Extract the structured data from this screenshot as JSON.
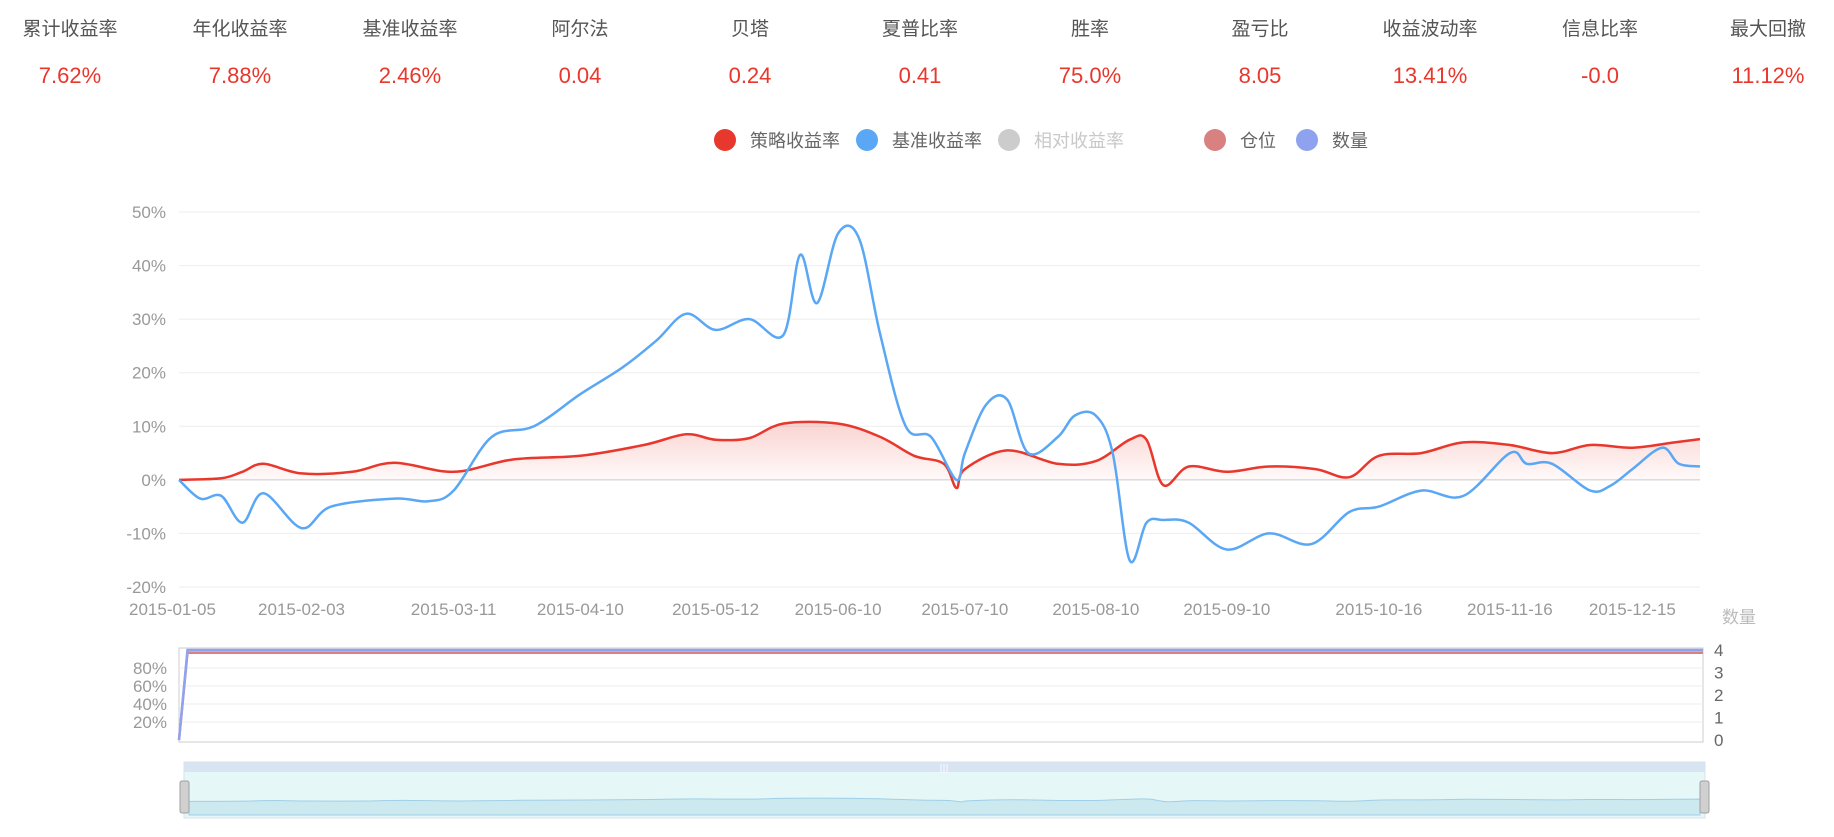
{
  "metrics": [
    {
      "label": "累计收益率",
      "value": "7.62%"
    },
    {
      "label": "年化收益率",
      "value": "7.88%"
    },
    {
      "label": "基准收益率",
      "value": "2.46%"
    },
    {
      "label": "阿尔法",
      "value": "0.04"
    },
    {
      "label": "贝塔",
      "value": "0.24"
    },
    {
      "label": "夏普比率",
      "value": "0.41"
    },
    {
      "label": "胜率",
      "value": "75.0%"
    },
    {
      "label": "盈亏比",
      "value": "8.05"
    },
    {
      "label": "收益波动率",
      "value": "13.41%"
    },
    {
      "label": "信息比率",
      "value": "-0.0"
    },
    {
      "label": "最大回撤",
      "value": "11.12%"
    }
  ],
  "colors": {
    "strategy": "#e8372c",
    "benchmark": "#5aa7f5",
    "relative": "#cccccc",
    "position": "#d98080",
    "quantity": "#8ea2f0",
    "metric_value": "#e8372c"
  },
  "legend": [
    {
      "name": "策略收益率",
      "color": "#e8372c",
      "active": true
    },
    {
      "name": "基准收益率",
      "color": "#5aa7f5",
      "active": true
    },
    {
      "name": "相对收益率",
      "color": "#cccccc",
      "active": false
    },
    {
      "name": "仓位",
      "color": "#d98080",
      "active": true
    },
    {
      "name": "数量",
      "color": "#8ea2f0",
      "active": true
    }
  ],
  "chart_data": [
    {
      "type": "line",
      "title": "",
      "xlabel": "",
      "ylabel": "",
      "ylim": [
        -20,
        50
      ],
      "y_ticks": [
        "50%",
        "40%",
        "30%",
        "20%",
        "10%",
        "0%",
        "-10%",
        "-20%"
      ],
      "x_ticks": [
        "2015-01-05",
        "2015-02-03",
        "2015-03-11",
        "2015-04-10",
        "2015-05-12",
        "2015-06-10",
        "2015-07-10",
        "2015-08-10",
        "2015-09-10",
        "2015-10-16",
        "2015-11-16",
        "2015-12-15"
      ],
      "grid": true,
      "legend_position": "top",
      "series": [
        {
          "name": "策略收益率",
          "x": [
            "2015-01-05",
            "2015-01-15",
            "2015-01-20",
            "2015-01-25",
            "2015-02-03",
            "2015-02-15",
            "2015-02-25",
            "2015-03-11",
            "2015-03-25",
            "2015-04-10",
            "2015-04-25",
            "2015-05-05",
            "2015-05-12",
            "2015-05-20",
            "2015-05-28",
            "2015-06-10",
            "2015-06-20",
            "2015-06-28",
            "2015-07-05",
            "2015-07-08",
            "2015-07-10",
            "2015-07-20",
            "2015-08-01",
            "2015-08-10",
            "2015-08-18",
            "2015-08-22",
            "2015-08-26",
            "2015-09-01",
            "2015-09-10",
            "2015-09-20",
            "2015-10-01",
            "2015-10-09",
            "2015-10-16",
            "2015-10-26",
            "2015-11-05",
            "2015-11-16",
            "2015-11-26",
            "2015-12-05",
            "2015-12-15",
            "2015-12-25",
            "2015-12-31"
          ],
          "values": [
            0,
            0.3,
            1.5,
            3,
            1.2,
            1.5,
            3.2,
            1.5,
            3.8,
            4.5,
            6.5,
            8.5,
            7.5,
            7.8,
            10.5,
            10.5,
            8,
            4.5,
            3,
            -1.5,
            2,
            5.5,
            3,
            3.5,
            7.5,
            7.5,
            -1,
            2.5,
            1.5,
            2.5,
            2,
            0.5,
            4.5,
            5,
            7,
            6.5,
            5,
            6.5,
            6,
            7,
            7.6
          ]
        },
        {
          "name": "基准收益率",
          "x": [
            "2015-01-05",
            "2015-01-10",
            "2015-01-15",
            "2015-01-20",
            "2015-01-25",
            "2015-02-03",
            "2015-02-10",
            "2015-02-25",
            "2015-03-05",
            "2015-03-11",
            "2015-03-20",
            "2015-03-30",
            "2015-04-10",
            "2015-04-20",
            "2015-04-28",
            "2015-05-05",
            "2015-05-12",
            "2015-05-20",
            "2015-05-28",
            "2015-06-01",
            "2015-06-05",
            "2015-06-10",
            "2015-06-15",
            "2015-06-20",
            "2015-06-26",
            "2015-07-02",
            "2015-07-08",
            "2015-07-10",
            "2015-07-15",
            "2015-07-20",
            "2015-07-25",
            "2015-08-01",
            "2015-08-05",
            "2015-08-10",
            "2015-08-14",
            "2015-08-18",
            "2015-08-22",
            "2015-08-26",
            "2015-09-01",
            "2015-09-10",
            "2015-09-20",
            "2015-09-30",
            "2015-10-09",
            "2015-10-16",
            "2015-10-26",
            "2015-11-05",
            "2015-11-16",
            "2015-11-20",
            "2015-11-26",
            "2015-12-05",
            "2015-12-10",
            "2015-12-15",
            "2015-12-22",
            "2015-12-26",
            "2015-12-31"
          ],
          "values": [
            0,
            -3.5,
            -3,
            -8,
            -2.5,
            -9,
            -5,
            -3.5,
            -4,
            -2,
            8,
            10,
            16,
            21,
            26,
            31,
            28,
            30,
            27,
            42,
            33,
            46,
            45,
            27,
            10,
            8,
            0,
            5,
            14,
            15,
            5,
            8,
            12,
            12,
            5,
            -15,
            -8,
            -7.5,
            -8,
            -13,
            -10,
            -12,
            -6,
            -5,
            -2,
            -3,
            5,
            3,
            3,
            -2,
            -1,
            2,
            6,
            3,
            2.5
          ]
        }
      ]
    },
    {
      "type": "line",
      "title": "",
      "y_left_ticks": [
        "80%",
        "60%",
        "40%",
        "20%"
      ],
      "y_right_label": "数量",
      "y_right_ticks": [
        "4",
        "3",
        "2",
        "1",
        "0"
      ],
      "series": [
        {
          "name": "仓位",
          "unit": "%",
          "x": [
            "2015-01-05",
            "2015-01-07",
            "2015-12-31"
          ],
          "values": [
            0,
            97,
            97
          ]
        },
        {
          "name": "数量",
          "x": [
            "2015-01-05",
            "2015-01-07",
            "2015-12-31"
          ],
          "values": [
            0,
            4,
            4
          ]
        }
      ]
    }
  ]
}
